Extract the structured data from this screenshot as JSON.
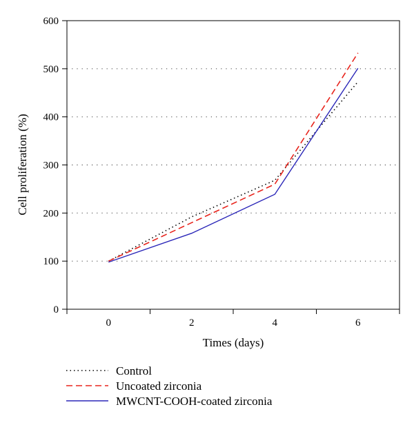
{
  "chart_data": {
    "type": "line",
    "title": "",
    "xlabel": "Times (days)",
    "ylabel": "Cell proliferation (%)",
    "x": [
      0,
      2,
      4,
      6
    ],
    "xlim": [
      -1,
      7
    ],
    "ylim": [
      0,
      600
    ],
    "xticks": [
      0,
      2,
      4,
      6
    ],
    "yticks": [
      0,
      100,
      200,
      300,
      400,
      500,
      600
    ],
    "xtick_labels": [
      "0",
      "2",
      "4",
      "6"
    ],
    "ytick_labels": [
      "0",
      "100",
      "200",
      "300",
      "400",
      "500",
      "600"
    ],
    "grid": "horizontal dotted",
    "legend_position": "bottom",
    "series": [
      {
        "name": "Control",
        "values": [
          100,
          192,
          268,
          473
        ],
        "style": "dotted",
        "color": "#000000"
      },
      {
        "name": "Uncoated zirconia",
        "values": [
          100,
          180,
          260,
          533
        ],
        "style": "dashed",
        "color": "#e8231b"
      },
      {
        "name": "MWCNT-COOH-coated zirconia",
        "values": [
          98,
          158,
          239,
          501
        ],
        "style": "solid",
        "color": "#2a26b8"
      }
    ]
  }
}
